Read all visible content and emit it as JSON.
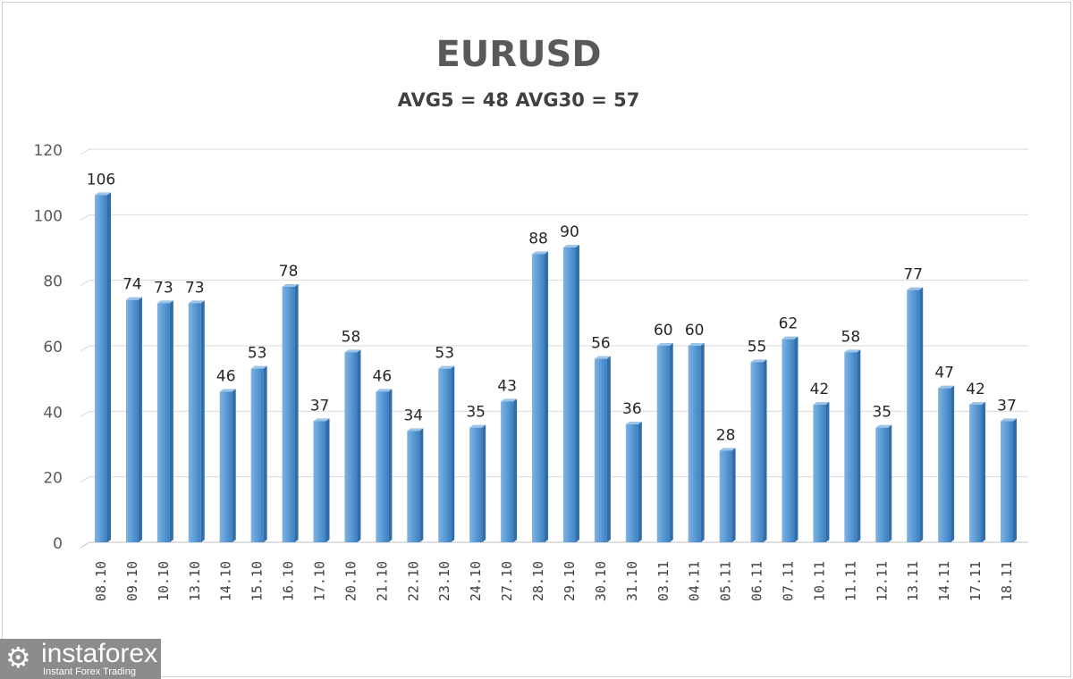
{
  "chart_data": {
    "type": "bar",
    "title": "EURUSD",
    "subtitle": "AVG5 = 48 AVG30 = 57",
    "xlabel": "",
    "ylabel": "",
    "ylim": [
      0,
      120
    ],
    "yticks": [
      0,
      20,
      40,
      60,
      80,
      100,
      120
    ],
    "grid": true,
    "categories": [
      "08.10",
      "09.10",
      "10.10",
      "13.10",
      "14.10",
      "15.10",
      "16.10",
      "17.10",
      "20.10",
      "21.10",
      "22.10",
      "23.10",
      "24.10",
      "27.10",
      "28.10",
      "29.10",
      "30.10",
      "31.10",
      "03.11",
      "04.11",
      "05.11",
      "06.11",
      "07.11",
      "10.11",
      "11.11",
      "12.11",
      "13.11",
      "14.11",
      "17.11",
      "18.11"
    ],
    "values": [
      106,
      74,
      73,
      73,
      46,
      53,
      78,
      37,
      58,
      46,
      34,
      53,
      35,
      43,
      88,
      90,
      56,
      36,
      60,
      60,
      28,
      55,
      62,
      42,
      58,
      35,
      77,
      47,
      42,
      37
    ],
    "bar_color": "#5b9bd5"
  },
  "logo": {
    "name": "instaforex",
    "tagline": "Instant Forex Trading"
  }
}
